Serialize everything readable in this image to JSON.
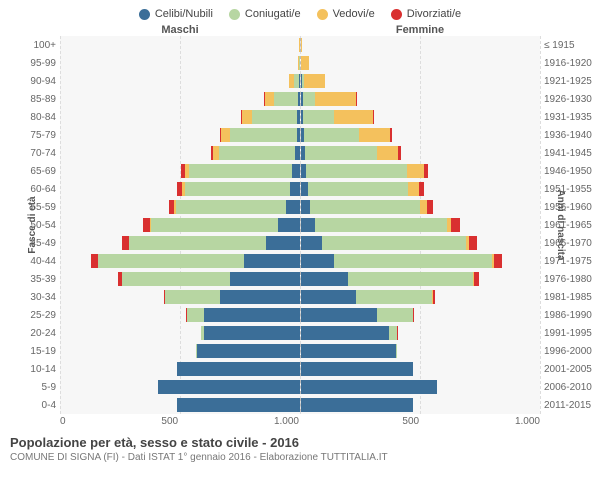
{
  "legend": [
    {
      "label": "Celibi/Nubili",
      "color": "#3b6e98"
    },
    {
      "label": "Coniugati/e",
      "color": "#b7d6a2"
    },
    {
      "label": "Vedovi/e",
      "color": "#f4c15d"
    },
    {
      "label": "Divorziati/e",
      "color": "#d93030"
    }
  ],
  "headers": {
    "male": "Maschi",
    "female": "Femmine"
  },
  "ylabels": {
    "left": "Fasce di età",
    "right": "Anni di nascita"
  },
  "xaxis": {
    "max": 1000,
    "ticks": [
      "1.000",
      "500",
      "0",
      "500",
      "1.000"
    ]
  },
  "colors": {
    "celibi": "#3b6e98",
    "coniugati": "#b7d6a2",
    "vedovi": "#f4c15d",
    "divorziati": "#d93030",
    "grid": "#dddddd",
    "background": "#f7f7f7"
  },
  "rows": [
    {
      "age": "100+",
      "birth": "≤ 1915",
      "m": {
        "c": 0,
        "co": 0,
        "v": 2,
        "d": 0
      },
      "f": {
        "c": 0,
        "co": 0,
        "v": 5,
        "d": 0
      }
    },
    {
      "age": "95-99",
      "birth": "1916-1920",
      "m": {
        "c": 0,
        "co": 3,
        "v": 5,
        "d": 0
      },
      "f": {
        "c": 2,
        "co": 2,
        "v": 30,
        "d": 0
      }
    },
    {
      "age": "90-94",
      "birth": "1921-1925",
      "m": {
        "c": 2,
        "co": 20,
        "v": 20,
        "d": 0
      },
      "f": {
        "c": 5,
        "co": 8,
        "v": 90,
        "d": 0
      }
    },
    {
      "age": "85-89",
      "birth": "1926-1930",
      "m": {
        "c": 5,
        "co": 100,
        "v": 40,
        "d": 2
      },
      "f": {
        "c": 10,
        "co": 50,
        "v": 170,
        "d": 3
      }
    },
    {
      "age": "80-84",
      "birth": "1931-1935",
      "m": {
        "c": 10,
        "co": 190,
        "v": 40,
        "d": 3
      },
      "f": {
        "c": 12,
        "co": 130,
        "v": 160,
        "d": 5
      }
    },
    {
      "age": "75-79",
      "birth": "1936-1940",
      "m": {
        "c": 12,
        "co": 280,
        "v": 35,
        "d": 5
      },
      "f": {
        "c": 15,
        "co": 230,
        "v": 130,
        "d": 8
      }
    },
    {
      "age": "70-74",
      "birth": "1941-1945",
      "m": {
        "c": 18,
        "co": 320,
        "v": 25,
        "d": 8
      },
      "f": {
        "c": 18,
        "co": 300,
        "v": 90,
        "d": 10
      }
    },
    {
      "age": "65-69",
      "birth": "1946-1950",
      "m": {
        "c": 30,
        "co": 430,
        "v": 18,
        "d": 15
      },
      "f": {
        "c": 25,
        "co": 420,
        "v": 70,
        "d": 18
      }
    },
    {
      "age": "60-64",
      "birth": "1951-1955",
      "m": {
        "c": 40,
        "co": 440,
        "v": 12,
        "d": 18
      },
      "f": {
        "c": 30,
        "co": 420,
        "v": 45,
        "d": 20
      }
    },
    {
      "age": "55-59",
      "birth": "1956-1960",
      "m": {
        "c": 55,
        "co": 460,
        "v": 8,
        "d": 22
      },
      "f": {
        "c": 40,
        "co": 460,
        "v": 30,
        "d": 25
      }
    },
    {
      "age": "50-54",
      "birth": "1961-1965",
      "m": {
        "c": 90,
        "co": 530,
        "v": 5,
        "d": 30
      },
      "f": {
        "c": 60,
        "co": 550,
        "v": 20,
        "d": 35
      }
    },
    {
      "age": "45-49",
      "birth": "1966-1970",
      "m": {
        "c": 140,
        "co": 570,
        "v": 3,
        "d": 30
      },
      "f": {
        "c": 90,
        "co": 600,
        "v": 12,
        "d": 35
      }
    },
    {
      "age": "40-44",
      "birth": "1971-1975",
      "m": {
        "c": 230,
        "co": 610,
        "v": 2,
        "d": 30
      },
      "f": {
        "c": 140,
        "co": 660,
        "v": 8,
        "d": 35
      }
    },
    {
      "age": "35-39",
      "birth": "1976-1980",
      "m": {
        "c": 290,
        "co": 450,
        "v": 1,
        "d": 15
      },
      "f": {
        "c": 200,
        "co": 520,
        "v": 4,
        "d": 20
      }
    },
    {
      "age": "30-34",
      "birth": "1981-1985",
      "m": {
        "c": 330,
        "co": 230,
        "v": 0,
        "d": 6
      },
      "f": {
        "c": 230,
        "co": 320,
        "v": 2,
        "d": 8
      }
    },
    {
      "age": "25-29",
      "birth": "1986-1990",
      "m": {
        "c": 400,
        "co": 70,
        "v": 0,
        "d": 2
      },
      "f": {
        "c": 320,
        "co": 150,
        "v": 1,
        "d": 3
      }
    },
    {
      "age": "20-24",
      "birth": "1991-1995",
      "m": {
        "c": 400,
        "co": 10,
        "v": 0,
        "d": 0
      },
      "f": {
        "c": 370,
        "co": 35,
        "v": 0,
        "d": 1
      }
    },
    {
      "age": "15-19",
      "birth": "1996-2000",
      "m": {
        "c": 430,
        "co": 1,
        "v": 0,
        "d": 0
      },
      "f": {
        "c": 400,
        "co": 3,
        "v": 0,
        "d": 0
      }
    },
    {
      "age": "10-14",
      "birth": "2001-2005",
      "m": {
        "c": 510,
        "co": 0,
        "v": 0,
        "d": 0
      },
      "f": {
        "c": 470,
        "co": 0,
        "v": 0,
        "d": 0
      }
    },
    {
      "age": "5-9",
      "birth": "2006-2010",
      "m": {
        "c": 590,
        "co": 0,
        "v": 0,
        "d": 0
      },
      "f": {
        "c": 570,
        "co": 0,
        "v": 0,
        "d": 0
      }
    },
    {
      "age": "0-4",
      "birth": "2011-2015",
      "m": {
        "c": 510,
        "co": 0,
        "v": 0,
        "d": 0
      },
      "f": {
        "c": 470,
        "co": 0,
        "v": 0,
        "d": 0
      }
    }
  ],
  "title": "Popolazione per età, sesso e stato civile - 2016",
  "subtitle": "COMUNE DI SIGNA (FI) - Dati ISTAT 1° gennaio 2016 - Elaborazione TUTTITALIA.IT",
  "fontsize": {
    "legend": 11,
    "axis": 10,
    "title": 13,
    "subtitle": 10
  }
}
